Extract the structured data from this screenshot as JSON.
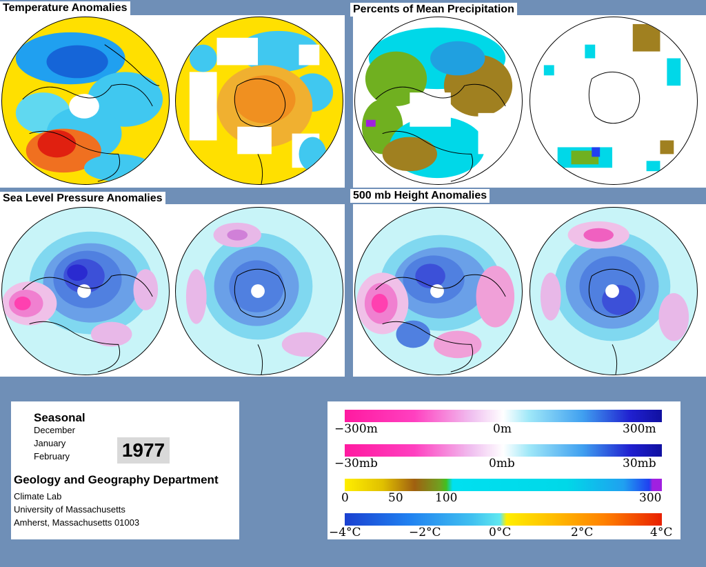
{
  "panels": {
    "temperature": {
      "title": "Temperature Anomalies"
    },
    "precipitation": {
      "title": "Percents of Mean Precipitation"
    },
    "slp": {
      "title": "Sea Level Pressure Anomalies"
    },
    "height500": {
      "title": "500 mb Height Anomalies"
    }
  },
  "info": {
    "season_label": "Seasonal",
    "months": [
      "December",
      "January",
      "February"
    ],
    "year": "1977",
    "department": "Geology and Geography Department",
    "address_lines": [
      "Climate Lab",
      "University of Massachusetts",
      "Amherst, Massachusetts 01003"
    ]
  },
  "legend": {
    "height_scale": {
      "labels": [
        "−300m",
        "0m",
        "300m"
      ]
    },
    "pressure_scale": {
      "labels": [
        "−30mb",
        "0mb",
        "30mb"
      ]
    },
    "precip_scale": {
      "labels": [
        "0",
        "50",
        "100",
        "300"
      ]
    },
    "temp_scale": {
      "labels": [
        "−4°C",
        "−2°C",
        "0°C",
        "2°C",
        "4°C"
      ]
    }
  },
  "colors": {
    "background": "#6f8fb7",
    "deep_blue": "#2020d0",
    "light_cyan": "#c8f4f8",
    "magenta": "#ff1aa0",
    "yellow": "#ffee00",
    "red": "#e82000"
  }
}
